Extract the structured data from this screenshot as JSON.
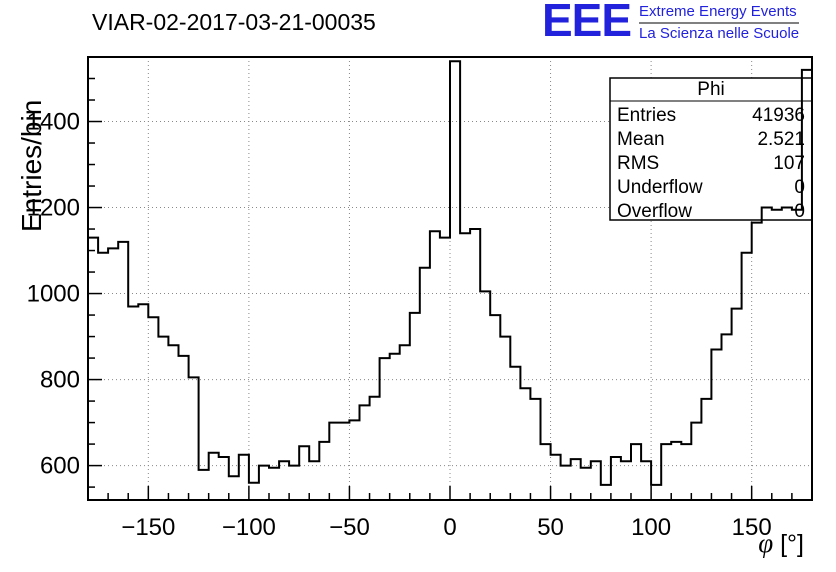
{
  "title": "VIAR-02-2017-03-21-00035",
  "logo": {
    "eee": "EEE",
    "line1": "Extreme Energy Events",
    "line2": "La Scienza nelle Scuole",
    "color": "#2222dd"
  },
  "stats": {
    "title": "Phi",
    "rows": [
      {
        "label": "Entries",
        "value": "41936"
      },
      {
        "label": "Mean",
        "value": "2.521"
      },
      {
        "label": "RMS",
        "value": "107"
      },
      {
        "label": "Underflow",
        "value": "0"
      },
      {
        "label": "Overflow",
        "value": "0"
      }
    ]
  },
  "axis": {
    "ylabel": "Entries/bin",
    "xlabel_symbol": "φ",
    "xlabel_rest": " [°]"
  },
  "chart_data": {
    "type": "bar",
    "style": "root-step-histogram",
    "title": "VIAR-02-2017-03-21-00035",
    "xlabel": "phi [deg]",
    "ylabel": "Entries/bin",
    "xlim": [
      -180,
      180
    ],
    "ylim": [
      520,
      1550
    ],
    "grid": true,
    "x_start": -180,
    "bin_width": 5,
    "values": [
      1130,
      1095,
      1105,
      1120,
      970,
      975,
      945,
      900,
      880,
      855,
      805,
      590,
      630,
      620,
      575,
      625,
      560,
      600,
      595,
      610,
      600,
      645,
      610,
      655,
      700,
      700,
      705,
      740,
      760,
      850,
      860,
      880,
      955,
      1060,
      1145,
      1130,
      1540,
      1140,
      1150,
      1005,
      950,
      900,
      830,
      780,
      755,
      650,
      625,
      600,
      615,
      595,
      610,
      555,
      620,
      610,
      650,
      610,
      555,
      650,
      655,
      650,
      700,
      755,
      870,
      905,
      965,
      1095,
      1165,
      1200,
      1195,
      1200,
      1195,
      1520
    ],
    "x_major_ticks": [
      -150,
      -100,
      -50,
      0,
      50,
      100,
      150
    ],
    "y_major_ticks": [
      600,
      800,
      1000,
      1200,
      1400
    ],
    "x_minor_step": 10,
    "y_minor_step": 50,
    "line_color": "#000000",
    "grid_color": "#888888"
  }
}
